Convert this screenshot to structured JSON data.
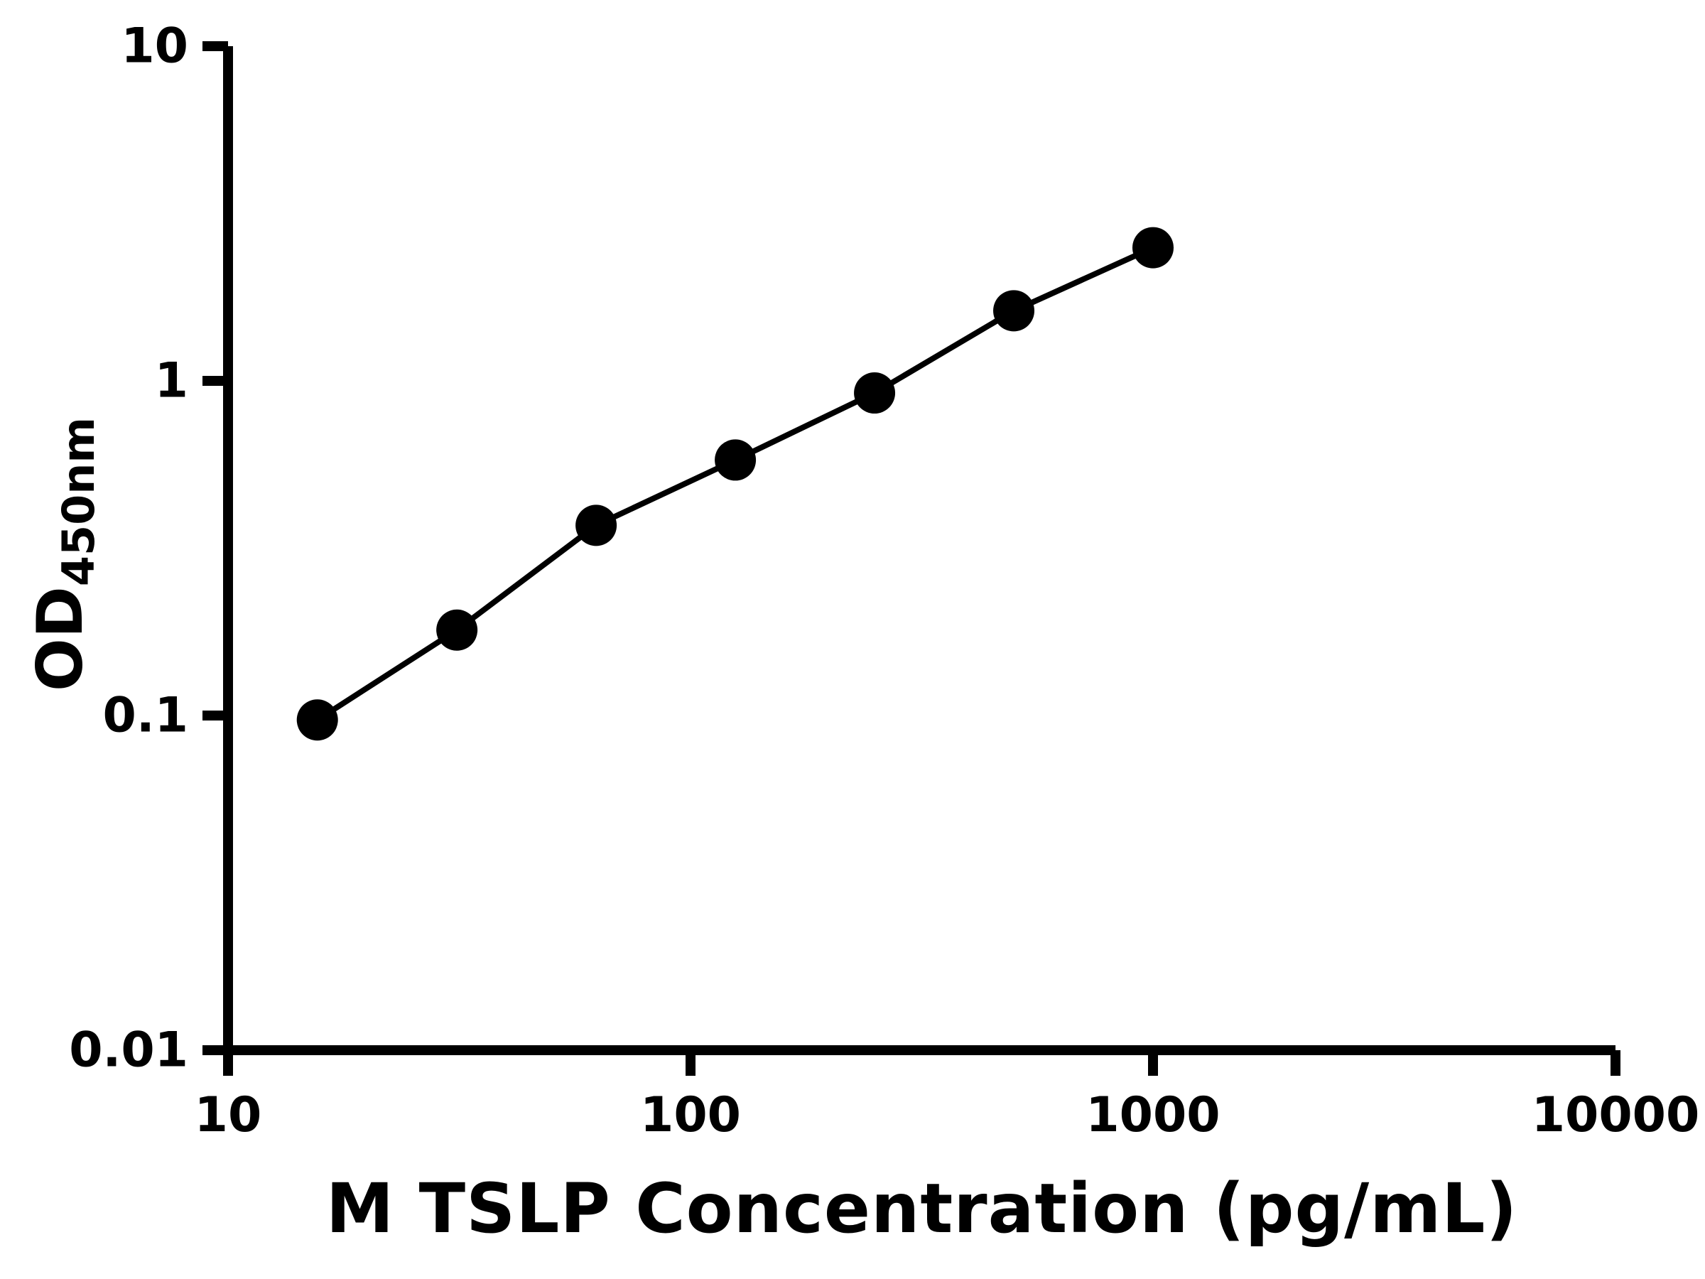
{
  "chart_data": {
    "type": "scatter",
    "subtype": "line-connected-log-log",
    "title": "",
    "xlabel": "M TSLP Concentration (pg/mL)",
    "ylabel_main": "OD",
    "ylabel_sub": "450nm",
    "x": [
      15.6,
      31.25,
      62.5,
      125,
      250,
      500,
      1000
    ],
    "y": [
      0.097,
      0.18,
      0.37,
      0.58,
      0.92,
      1.62,
      2.5
    ],
    "x_scale": "log",
    "y_scale": "log",
    "xlim": [
      10,
      10000
    ],
    "ylim": [
      0.01,
      10
    ],
    "x_ticks": [
      10,
      100,
      1000,
      10000
    ],
    "y_ticks": [
      0.01,
      0.1,
      1,
      10
    ],
    "grid": false,
    "legend": null,
    "marker": "circle",
    "marker_color": "#000000",
    "line_color": "#000000",
    "axis_color": "#000000",
    "background": "#ffffff"
  }
}
